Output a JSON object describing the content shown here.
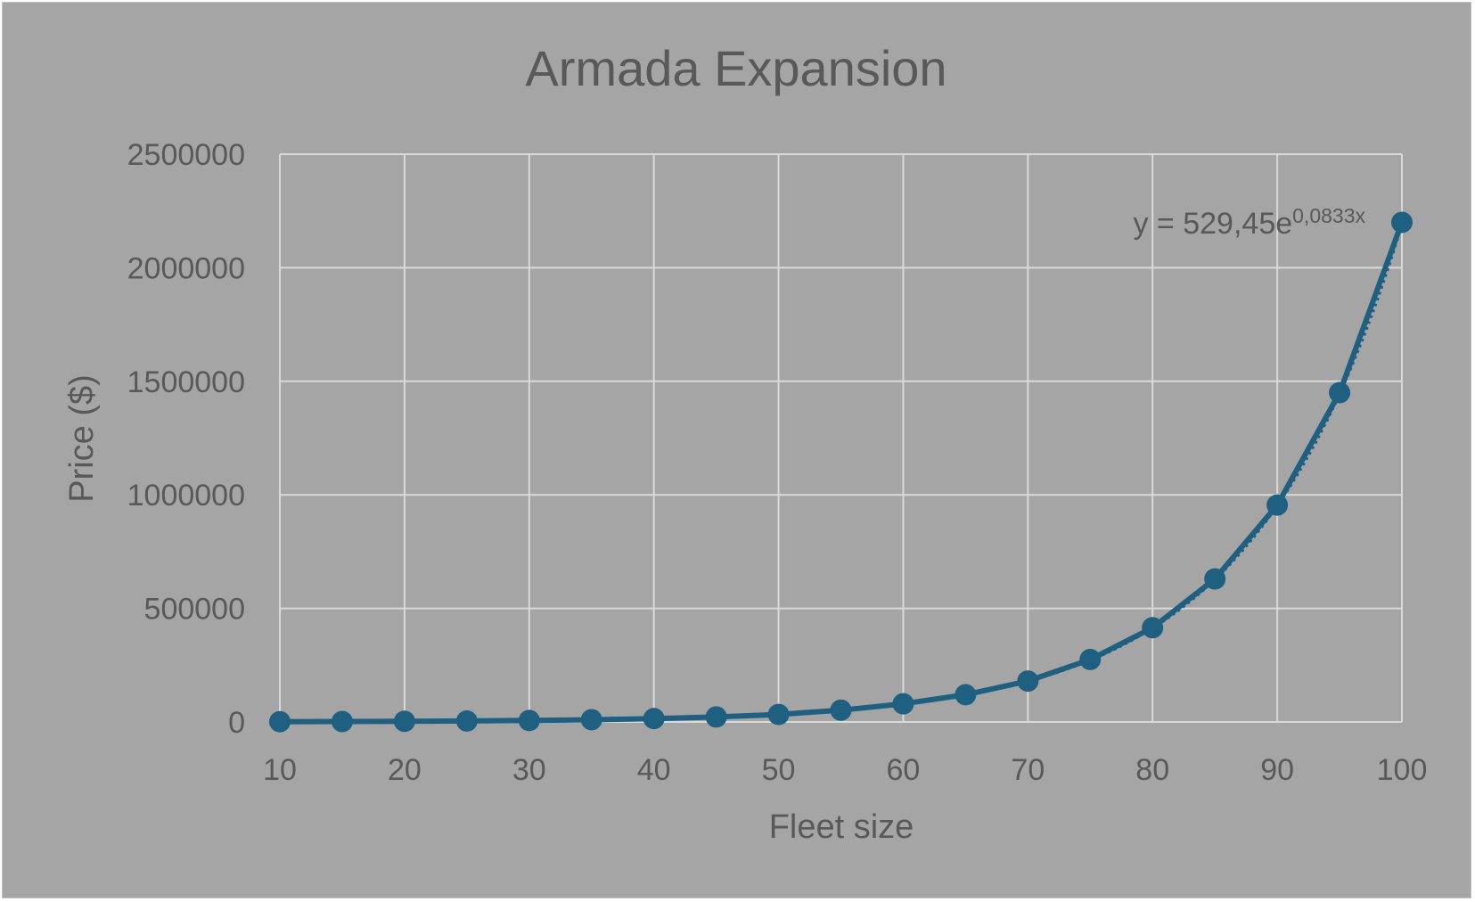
{
  "chart_data": {
    "type": "scatter",
    "title": "Armada Expansion",
    "xlabel": "Fleet size",
    "ylabel": "Price ($)",
    "xlim": [
      10,
      100
    ],
    "ylim": [
      0,
      2500000
    ],
    "x_ticks": [
      10,
      20,
      30,
      40,
      50,
      60,
      70,
      80,
      90,
      100
    ],
    "y_ticks": [
      0,
      500000,
      1000000,
      1500000,
      2000000,
      2500000
    ],
    "grid": true,
    "legend": "none",
    "series": [
      {
        "color": "#1f5f7f",
        "marker": "circle",
        "line": "solid",
        "x": [
          10,
          15,
          20,
          25,
          30,
          35,
          40,
          45,
          50,
          55,
          60,
          65,
          70,
          75,
          80,
          85,
          90,
          95,
          100
        ],
        "y": [
          1200,
          1800,
          2800,
          4200,
          6500,
          10000,
          15000,
          22000,
          33000,
          52000,
          80000,
          120000,
          180000,
          275000,
          415000,
          630000,
          955000,
          1450000,
          2200000
        ]
      }
    ],
    "trendline": {
      "type": "exponential",
      "style": "dotted",
      "color": "#1f5f7f",
      "a": 529.45,
      "b": 0.0833,
      "label_main": "y = 529,45e",
      "label_exponent": "0,0833x"
    }
  },
  "colors": {
    "background": "#a5a5a5",
    "grid": "#d9d9d9",
    "text": "#595959",
    "series": "#1f5f7f"
  }
}
